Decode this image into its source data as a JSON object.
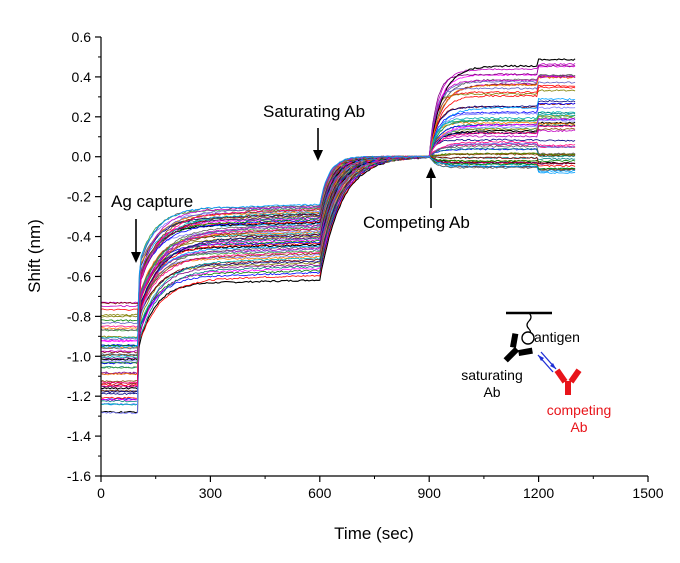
{
  "chart_data": {
    "type": "line",
    "title": "",
    "xlabel": "Time (sec)",
    "ylabel": "Shift (nm)",
    "xlim": [
      0,
      1500
    ],
    "ylim": [
      -1.6,
      0.6
    ],
    "x_ticks": [
      0,
      300,
      600,
      900,
      1200,
      1500
    ],
    "y_ticks": [
      -1.6,
      -1.4,
      -1.2,
      -1.0,
      -0.8,
      -0.6,
      -0.4,
      -0.2,
      0.0,
      0.2,
      0.4,
      0.6
    ],
    "x_tick_labels": [
      "0",
      "300",
      "600",
      "900",
      "1200",
      "1500"
    ],
    "y_tick_labels": [
      "-1.6",
      "-1.4",
      "-1.2",
      "-1.0",
      "-0.8",
      "-0.6",
      "-0.4",
      "-0.2",
      "0.0",
      "0.2",
      "0.4",
      "0.6"
    ],
    "grid": false,
    "legend": "none",
    "series_count": 60,
    "phase_times": [
      0,
      100,
      400,
      600,
      900,
      1200,
      1300
    ],
    "baseline_range": [
      -1.3,
      -0.72
    ],
    "capture_range": [
      -0.66,
      -0.25
    ],
    "saturating_plateau": 0.0,
    "competing_range": [
      -0.06,
      0.46
    ],
    "annotations": [
      {
        "text": "Ag capture",
        "x": 100,
        "y": -0.55
      },
      {
        "text": "Saturating Ab",
        "x": 600,
        "y": -0.02
      },
      {
        "text": "Competing Ab",
        "x": 900,
        "y": -0.07
      }
    ],
    "inset": {
      "antigen_label": "antigen",
      "saturating_label_1": "saturating",
      "saturating_label_2": "Ab",
      "competing_label_1": "competing",
      "competing_label_2": "Ab",
      "saturating_color": "#000000",
      "competing_color": "#e8141a",
      "arrow_color": "#1f2fd6"
    }
  }
}
